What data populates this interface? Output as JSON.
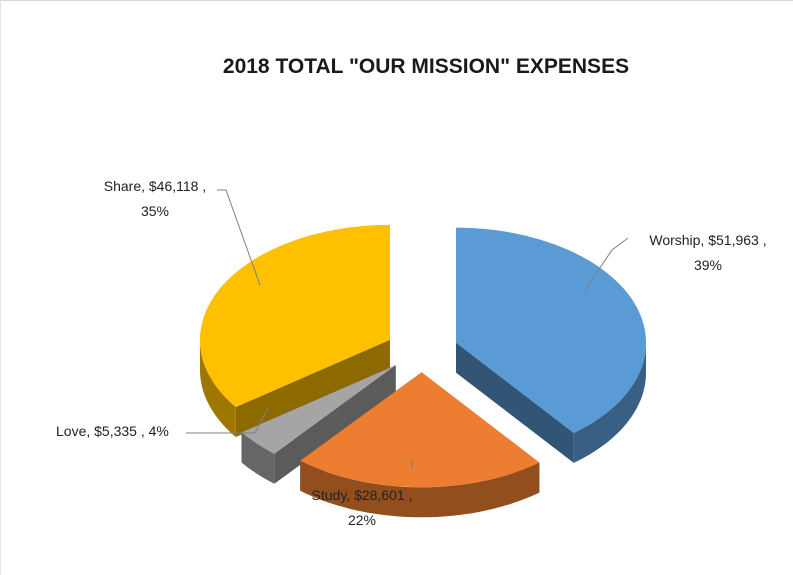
{
  "chart_data": {
    "type": "pie",
    "title": "2018 TOTAL \"OUR MISSION\" EXPENSES",
    "slices": [
      {
        "name": "Worship",
        "value": 51963,
        "value_label": "$51,963",
        "percent_label": "39%",
        "color": "#5b9bd5"
      },
      {
        "name": "Study",
        "value": 28601,
        "value_label": "$28,601",
        "percent_label": "22%",
        "color": "#ed7d31"
      },
      {
        "name": "Love",
        "value": 5335,
        "value_label": "$5,335",
        "percent_label": "4%",
        "color": "#a5a5a5"
      },
      {
        "name": "Share",
        "value": 46118,
        "value_label": "$46,118",
        "percent_label": "35%",
        "color": "#ffc000"
      }
    ],
    "style": "3d-exploded",
    "legend": "none",
    "data_labels": "name, value, percent"
  }
}
